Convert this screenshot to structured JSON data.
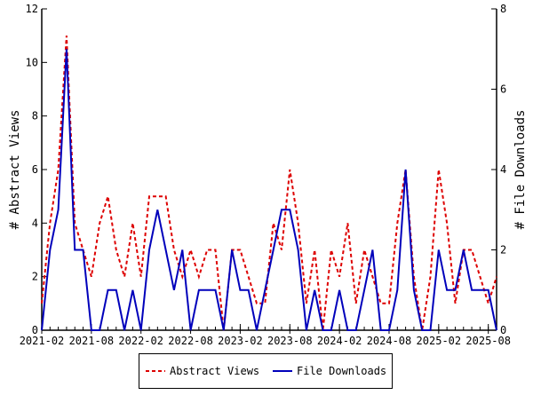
{
  "chart_data": {
    "type": "line",
    "title": "",
    "xlabel": "",
    "ylabel_left": "# Abstract Views",
    "ylabel_right": "# File Downloads",
    "ylim_left": [
      0,
      12
    ],
    "ylim_right": [
      0,
      8
    ],
    "yticks_left": [
      "0",
      "2",
      "4",
      "6",
      "8",
      "10",
      "12"
    ],
    "yticks_right": [
      "0",
      "2",
      "4",
      "6",
      "8"
    ],
    "xtick_labels": [
      "2021-02",
      "2021-08",
      "2022-02",
      "2022-08",
      "2023-02",
      "2023-08",
      "2024-02",
      "2024-08",
      "2025-02",
      "2025-08"
    ],
    "x_start": "2021-02",
    "x_end": "2025-09",
    "grid": false,
    "legend_position": "bottom-center",
    "series": [
      {
        "name": "Abstract Views",
        "axis": "left",
        "color": "#dd0000",
        "style": "dashed",
        "values": [
          1,
          4,
          6,
          11,
          4,
          3,
          2,
          4,
          5,
          3,
          2,
          4,
          2,
          5,
          5,
          5,
          3,
          2,
          3,
          2,
          3,
          3,
          0,
          3,
          3,
          2,
          1,
          1,
          4,
          3,
          6,
          4,
          1,
          3,
          0,
          3,
          2,
          4,
          1,
          3,
          2,
          1,
          1,
          4,
          6,
          2,
          0,
          2,
          6,
          4,
          1,
          3,
          3,
          2,
          1,
          2
        ]
      },
      {
        "name": "File Downloads",
        "axis": "right",
        "color": "#0000bb",
        "style": "solid",
        "values": [
          0,
          2,
          3,
          7,
          2,
          2,
          0,
          0,
          1,
          1,
          0,
          1,
          0,
          2,
          3,
          2,
          1,
          2,
          0,
          1,
          1,
          1,
          0,
          2,
          1,
          1,
          0,
          1,
          2,
          3,
          3,
          2,
          0,
          1,
          0,
          0,
          1,
          0,
          0,
          1,
          2,
          0,
          0,
          1,
          4,
          1,
          0,
          0,
          2,
          1,
          1,
          2,
          1,
          1,
          1,
          0
        ]
      }
    ]
  }
}
